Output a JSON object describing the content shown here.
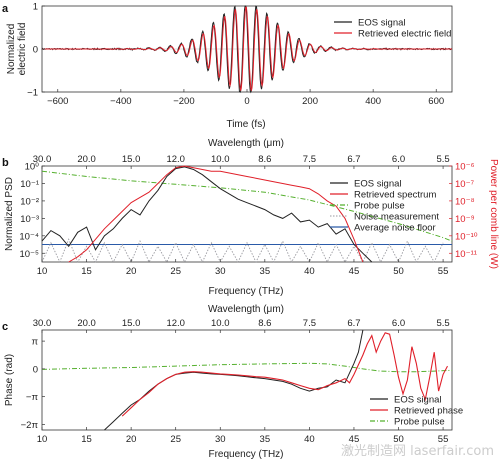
{
  "colors": {
    "eos": "#222222",
    "retrieved": "#e0202a",
    "probe": "#55b02e",
    "noise": "#9a9aa0",
    "floor": "#2a5aa8",
    "right_axis": "#e0202a"
  },
  "watermark": "激光制造网 laserfair.com",
  "chart_data": [
    {
      "panel": "a",
      "type": "line",
      "xlabel": "Time (fs)",
      "ylabel_lines": [
        "Normalized",
        "electric field"
      ],
      "xlim": [
        -650,
        650
      ],
      "ylim": [
        -1,
        1
      ],
      "xticks": [
        -600,
        -400,
        -200,
        0,
        200,
        400,
        600
      ],
      "yticks": [
        -1,
        0,
        1
      ],
      "legend_placement": "top-right",
      "series": [
        {
          "name": "EOS signal",
          "model": {
            "amplitude": 1.0,
            "center": -5,
            "width": 95,
            "period": 34,
            "noise": 0.03
          }
        },
        {
          "name": "Retrieved electric field",
          "model": {
            "amplitude": 0.93,
            "center": -3,
            "width": 92,
            "period": 34,
            "noise": 0.0
          }
        }
      ]
    },
    {
      "panel": "b",
      "type": "line",
      "top_axis_label": "Wavelength (μm)",
      "top_ticks": [
        "30.0",
        "20.0",
        "15.0",
        "12.0",
        "10.0",
        "8.6",
        "7.5",
        "6.7",
        "6.0",
        "5.5"
      ],
      "top_tick_positions_thz": [
        10,
        15,
        20,
        25,
        30,
        35,
        40,
        45,
        50,
        55
      ],
      "xlabel": "Frequency (THz)",
      "xlim": [
        10,
        56
      ],
      "xticks": [
        10,
        15,
        20,
        25,
        30,
        35,
        40,
        45,
        50,
        55
      ],
      "ylabel": "Normalized PSD",
      "ylim_log10": [
        -5.5,
        0
      ],
      "ytick_labels": [
        "10⁰",
        "10⁻¹",
        "10⁻²",
        "10⁻³",
        "10⁻⁴",
        "10⁻⁵"
      ],
      "ytick_log10": [
        0,
        -1,
        -2,
        -3,
        -4,
        -5
      ],
      "right_ylabel": "Power per comb line (W)",
      "right_ytick_labels": [
        "10⁻⁶",
        "10⁻⁷",
        "10⁻⁸",
        "10⁻⁹",
        "10⁻¹⁰",
        "10⁻¹¹"
      ],
      "legend_placement": "right",
      "series": [
        {
          "name": "EOS signal",
          "x": [
            10,
            11,
            12,
            13,
            14,
            15,
            16,
            17,
            18,
            19,
            20,
            21,
            22,
            23,
            24,
            25,
            26,
            27,
            28,
            29,
            30,
            31,
            32,
            33,
            34,
            35,
            36,
            37,
            38,
            39,
            40,
            41,
            42,
            43,
            44,
            45,
            46,
            47
          ],
          "log10_y": [
            -4.3,
            -3.7,
            -4.0,
            -4.6,
            -3.8,
            -3.5,
            -4.8,
            -4.0,
            -3.6,
            -3.0,
            -2.5,
            -2.8,
            -2.0,
            -1.4,
            -0.6,
            -0.15,
            -0.05,
            -0.2,
            -0.5,
            -0.9,
            -1.3,
            -1.6,
            -1.9,
            -2.1,
            -2.3,
            -2.5,
            -2.8,
            -3.0,
            -2.7,
            -3.2,
            -3.1,
            -3.5,
            -3.3,
            -3.9,
            -3.6,
            -4.5,
            -5.0,
            -5.5
          ]
        },
        {
          "name": "Retrieved spectrum",
          "x": [
            13,
            14,
            15,
            16,
            17,
            18,
            19,
            20,
            21,
            22,
            23,
            24,
            25,
            26,
            27,
            28,
            29,
            30,
            31,
            32,
            33,
            34,
            35,
            36,
            37,
            38,
            39,
            40,
            41,
            42,
            43,
            44,
            45,
            46
          ],
          "log10_y": [
            -5.5,
            -5.2,
            -4.8,
            -4.2,
            -3.6,
            -3.1,
            -2.6,
            -2.1,
            -1.8,
            -1.5,
            -1.0,
            -0.5,
            -0.1,
            0.0,
            -0.1,
            -0.2,
            -0.3,
            -0.3,
            -0.4,
            -0.5,
            -0.6,
            -0.7,
            -0.8,
            -0.9,
            -1.0,
            -1.1,
            -1.2,
            -1.3,
            -1.6,
            -2.0,
            -2.3,
            -3.0,
            -4.2,
            -5.5
          ]
        },
        {
          "name": "Probe pulse",
          "x": [
            10,
            15,
            20,
            25,
            30,
            35,
            40,
            45,
            50,
            55,
            56
          ],
          "log10_y": [
            -0.3,
            -0.6,
            -0.85,
            -1.05,
            -1.25,
            -1.5,
            -1.95,
            -2.6,
            -3.3,
            -4.1,
            -4.3
          ]
        },
        {
          "name": "Noise measurement",
          "x": [
            10,
            11,
            12,
            13,
            14,
            15,
            16,
            17,
            18,
            19,
            20,
            21,
            22,
            23,
            24,
            25,
            26,
            27,
            28,
            29,
            30,
            31,
            32,
            33,
            34,
            35,
            36,
            37,
            38,
            39,
            40,
            41,
            42,
            43,
            44,
            45,
            46,
            47,
            48,
            49,
            50,
            51,
            52,
            53,
            54,
            55
          ],
          "log10_y": [
            -5.5,
            -4.4,
            -5.5,
            -4.2,
            -5.5,
            -4.6,
            -5.5,
            -4.4,
            -5.5,
            -4.5,
            -5.5,
            -4.3,
            -5.5,
            -4.6,
            -5.5,
            -4.4,
            -5.5,
            -4.5,
            -5.5,
            -4.4,
            -5.5,
            -4.6,
            -5.5,
            -4.4,
            -5.5,
            -4.5,
            -5.5,
            -4.3,
            -5.5,
            -4.6,
            -5.5,
            -4.4,
            -5.5,
            -4.5,
            -5.5,
            -4.6,
            -5.5,
            -4.4,
            -5.5,
            -4.5,
            -5.5,
            -4.3,
            -5.5,
            -4.6,
            -5.5,
            -4.4
          ]
        },
        {
          "name": "Average noise floor",
          "x": [
            10,
            56
          ],
          "log10_y": [
            -4.5,
            -4.5
          ]
        }
      ]
    },
    {
      "panel": "c",
      "type": "line",
      "top_axis_label": "Wavelength (μm)",
      "top_ticks": [
        "30.0",
        "20.0",
        "15.0",
        "12.0",
        "10.0",
        "8.6",
        "7.5",
        "6.7",
        "6.0",
        "5.5"
      ],
      "top_tick_positions_thz": [
        10,
        15,
        20,
        25,
        30,
        35,
        40,
        45,
        50,
        55
      ],
      "xlabel": "Frequency (THz)",
      "xlim": [
        10,
        56
      ],
      "xticks": [
        10,
        15,
        20,
        25,
        30,
        35,
        40,
        45,
        50,
        55
      ],
      "ylabel": "Phase (rad)",
      "ylim_pi": [
        -2.2,
        1.4
      ],
      "ytick_labels": [
        "π",
        "0",
        "−π",
        "−2π"
      ],
      "ytick_pi": [
        1,
        0,
        -1,
        -2
      ],
      "legend_placement": "bottom-right",
      "series": [
        {
          "name": "EOS signal",
          "x": [
            17,
            18,
            19,
            20,
            21,
            22,
            23,
            24,
            25,
            26,
            27,
            28,
            29,
            30,
            31,
            32,
            33,
            34,
            35,
            36,
            37,
            38,
            39,
            40,
            41,
            42,
            43,
            44,
            45,
            45.5,
            46
          ],
          "y_pi": [
            -2.2,
            -1.9,
            -1.6,
            -1.3,
            -1.1,
            -0.8,
            -0.55,
            -0.35,
            -0.2,
            -0.15,
            -0.12,
            -0.15,
            -0.18,
            -0.2,
            -0.22,
            -0.25,
            -0.28,
            -0.32,
            -0.35,
            -0.4,
            -0.45,
            -0.55,
            -0.7,
            -0.8,
            -0.7,
            -0.65,
            -0.4,
            -0.5,
            0.2,
            0.6,
            1.4
          ]
        },
        {
          "name": "Retrieved phase",
          "x": [
            19,
            20,
            21,
            22,
            23,
            24,
            25,
            26,
            27,
            28,
            29,
            30,
            31,
            32,
            33,
            34,
            35,
            36,
            37,
            38,
            39,
            40,
            41,
            42,
            43,
            44,
            44.5,
            45,
            46,
            46.5,
            47,
            47.5,
            48,
            48.5,
            49,
            49.5,
            50,
            50.5,
            51,
            51.5,
            52,
            52.5,
            53,
            53.5,
            54,
            54.5,
            55,
            55.5
          ],
          "y_pi": [
            -1.7,
            -1.4,
            -1.1,
            -0.85,
            -0.55,
            -0.35,
            -0.2,
            -0.12,
            -0.1,
            -0.12,
            -0.15,
            -0.18,
            -0.2,
            -0.22,
            -0.25,
            -0.28,
            -0.3,
            -0.35,
            -0.4,
            -0.5,
            -0.6,
            -0.7,
            -0.75,
            -0.6,
            -0.5,
            -0.35,
            -0.5,
            -0.2,
            0.5,
            0.9,
            1.2,
            0.6,
            1.0,
            1.3,
            1.25,
            0.5,
            -0.3,
            -0.9,
            -0.4,
            0.8,
            0.2,
            -0.7,
            -1.1,
            -0.3,
            0.6,
            -0.8,
            -0.2,
            0.1
          ]
        },
        {
          "name": "Probe pulse",
          "x": [
            10,
            15,
            20,
            25,
            30,
            35,
            40,
            42,
            44,
            46,
            48,
            50,
            52,
            54,
            56
          ],
          "y_pi": [
            -0.02,
            0.02,
            0.05,
            0.1,
            0.15,
            0.18,
            0.2,
            0.18,
            0.1,
            0.0,
            -0.08,
            -0.1,
            -0.1,
            -0.08,
            -0.05
          ]
        }
      ]
    }
  ]
}
